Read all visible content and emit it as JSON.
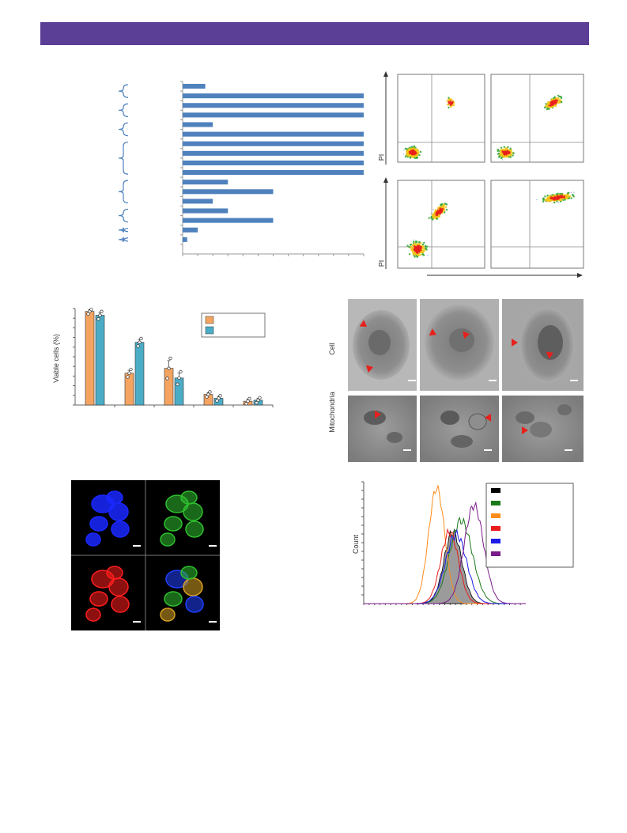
{
  "header": {
    "title": ""
  },
  "panel_a": {
    "chart_data": {
      "type": "bar",
      "orientation": "horizontal",
      "categories": [
        "",
        "",
        "",
        "",
        "",
        "",
        "",
        "",
        "",
        "",
        "",
        "",
        "",
        "",
        "",
        "",
        "",
        ""
      ],
      "values": [
        15,
        120,
        120,
        120,
        20,
        120,
        120,
        120,
        120,
        120,
        30,
        60,
        20,
        30,
        60,
        10,
        3,
        0
      ],
      "xlim": [
        0,
        120
      ],
      "bar_color": "#4f81bd",
      "title": "",
      "xlabel": "",
      "ylabel": ""
    }
  },
  "panel_b": {
    "ylabel": "PI",
    "quadrant_color": "#8a8a8a"
  },
  "panel_c": {
    "chart_data": {
      "type": "bar",
      "categories": [
        "",
        "",
        "",
        "",
        ""
      ],
      "series": [
        {
          "name": "",
          "color": "#f4a460",
          "values": [
            97,
            33,
            38,
            11,
            4
          ]
        },
        {
          "name": "",
          "color": "#4bacc6",
          "values": [
            93,
            65,
            28,
            7,
            5
          ]
        }
      ],
      "ylabel": "Viable cells (%)",
      "ylim": [
        0,
        100
      ],
      "legend_position": "top-right"
    }
  },
  "panel_d": {
    "row_labels": [
      "Cell",
      "Mitochondria"
    ],
    "arrow_color": "#e8201c"
  },
  "panel_e": {
    "channel_colors": [
      "#1a28ff",
      "#2fbf2f",
      "#ff1e1e",
      "#2fbf2f"
    ]
  },
  "panel_f": {
    "chart_data": {
      "type": "line",
      "ylabel": "Count",
      "xlabel": "",
      "series": [
        {
          "name": "",
          "color": "#000000",
          "peak": 0.55
        },
        {
          "name": "",
          "color": "#1a7a1a",
          "peak": 0.6
        },
        {
          "name": "",
          "color": "#ff8c1a",
          "peak": 0.45
        },
        {
          "name": "",
          "color": "#e81c1c",
          "peak": 0.53
        },
        {
          "name": "",
          "color": "#1c1ce8",
          "peak": 0.57
        },
        {
          "name": "",
          "color": "#7a1a8a",
          "peak": 0.68
        }
      ]
    }
  }
}
